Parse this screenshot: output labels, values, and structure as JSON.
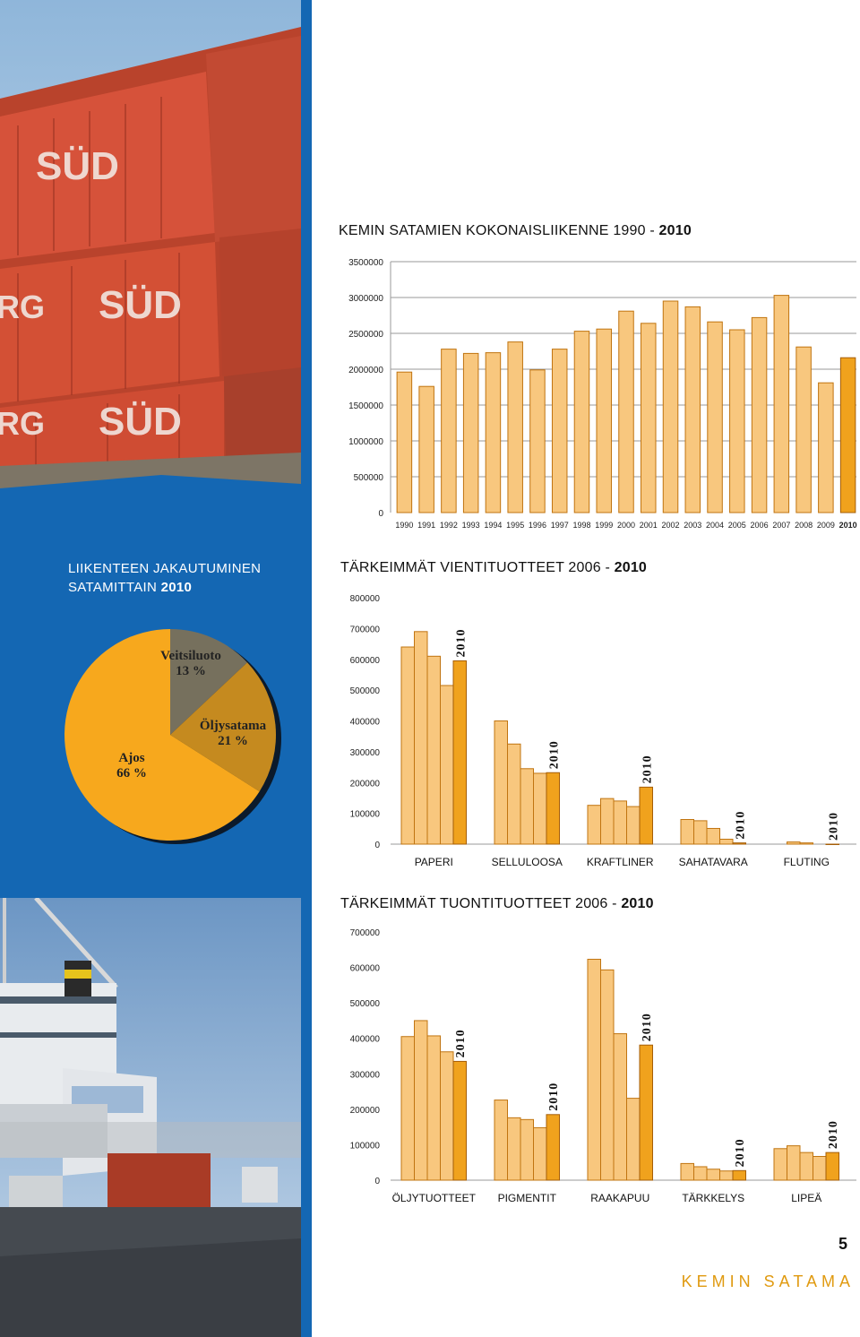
{
  "page": {
    "number": "5",
    "brand": "KEMIN SATAMA"
  },
  "colors": {
    "accent": "#f0a21d",
    "bar_light": "#f8c77e",
    "blue": "#1467b3"
  },
  "pie": {
    "title_line1": "LIIKENTEEN JAKAUTUMINEN",
    "title_line2": "SATAMITTAIN",
    "title_year": "2010"
  },
  "chart1": {
    "title": "KEMIN SATAMIEN KOKONAISLIIKENNE 1990 - ",
    "title_year": "2010"
  },
  "chart2": {
    "title": "TÄRKEIMMÄT VIENTITUOTTEET 2006 - ",
    "title_year": "2010"
  },
  "chart3": {
    "title": "TÄRKEIMMÄT TUONTITUOTTEET 2006 - ",
    "title_year": "2010"
  },
  "chart_data": [
    {
      "type": "bar",
      "title": "KEMIN SATAMIEN KOKONAISLIIKENNE 1990 - 2010",
      "categories": [
        "1990",
        "1991",
        "1992",
        "1993",
        "1994",
        "1995",
        "1996",
        "1997",
        "1998",
        "1999",
        "2000",
        "2001",
        "2002",
        "2003",
        "2004",
        "2005",
        "2006",
        "2007",
        "2008",
        "2009",
        "2010"
      ],
      "values": [
        1960000,
        1760000,
        2280000,
        2220000,
        2230000,
        2380000,
        1990000,
        2280000,
        2530000,
        2560000,
        2810000,
        2640000,
        2950000,
        2870000,
        2660000,
        2550000,
        2720000,
        3030000,
        2310000,
        1810000,
        2160000
      ],
      "yticks": [
        "0",
        "500000",
        "1000000",
        "1500000",
        "2000000",
        "2500000",
        "3000000",
        "3500000"
      ],
      "ylim": [
        0,
        3500000
      ],
      "highlight": "2010"
    },
    {
      "type": "bar",
      "title": "TÄRKEIMMÄT VIENTITUOTTEET 2006 - 2010",
      "categories": [
        "PAPERI",
        "SELLULOOSA",
        "KRAFTLINER",
        "SAHATAVARA",
        "FLUTING"
      ],
      "series_years": [
        "2006",
        "2007",
        "2008",
        "2009",
        "2010"
      ],
      "values": [
        [
          640000,
          690000,
          610000,
          515000,
          595000
        ],
        [
          400000,
          325000,
          245000,
          230000,
          232000
        ],
        [
          126000,
          148000,
          140000,
          122000,
          185000
        ],
        [
          80000,
          76000,
          51000,
          16000,
          4000
        ],
        [
          0,
          7000,
          4000,
          0,
          0
        ]
      ],
      "label_2010": "2010",
      "yticks": [
        "0",
        "100000",
        "200000",
        "300000",
        "400000",
        "500000",
        "600000",
        "700000",
        "800000"
      ],
      "ylim": [
        0,
        800000
      ]
    },
    {
      "type": "bar",
      "title": "TÄRKEIMMÄT TUONTITUOTTEET 2006 - 2010",
      "categories": [
        "ÖLJYTUOTTEET",
        "PIGMENTIT",
        "RAAKAPUU",
        "TÄRKKELYS",
        "LIPEÄ"
      ],
      "series_years": [
        "2006",
        "2007",
        "2008",
        "2009",
        "2010"
      ],
      "values": [
        [
          405000,
          450000,
          407000,
          362000,
          335000
        ],
        [
          226000,
          176000,
          171000,
          148000,
          185000
        ],
        [
          623000,
          593000,
          413000,
          231000,
          381000
        ],
        [
          47000,
          38000,
          31000,
          26000,
          27000
        ],
        [
          89000,
          97000,
          78000,
          67000,
          78000
        ]
      ],
      "label_2010": "2010",
      "yticks": [
        "0",
        "100000",
        "200000",
        "300000",
        "400000",
        "500000",
        "600000",
        "700000"
      ],
      "ylim": [
        0,
        700000
      ]
    },
    {
      "type": "pie",
      "title": "LIIKENTEEN JAKAUTUMINEN SATAMITTAIN 2010",
      "slices": [
        {
          "name": "Veitsiluoto",
          "value": 13,
          "pct": "13 %",
          "color": "#76705d"
        },
        {
          "name": "Öljysatama",
          "value": 21,
          "pct": "21 %",
          "color": "#c58a1f"
        },
        {
          "name": "Ajos",
          "value": 66,
          "pct": "66 %",
          "color": "#f7a81d"
        }
      ]
    }
  ]
}
